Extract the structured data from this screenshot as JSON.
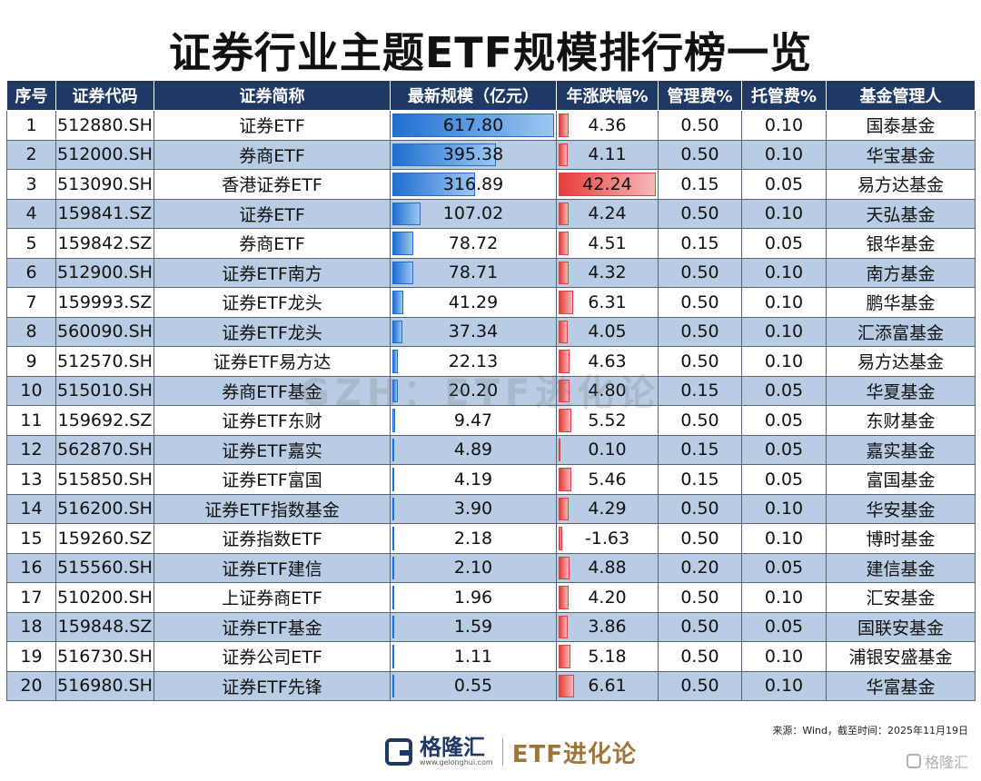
{
  "title": "证券行业主题ETF规模排行榜一览",
  "watermark": "GZH：ETF进化论",
  "headers": [
    "序号",
    "证券代码",
    "证券简称",
    "最新规模（亿元）",
    "年涨跌幅%",
    "管理费%",
    "托管费%",
    "基金管理人"
  ],
  "colors": {
    "header_bg": "#1f3864",
    "stripe": "#b8cce4",
    "bar_blue": "#1f6fd1",
    "bar_red": "#e83b3b"
  },
  "rows": [
    {
      "rank": "1",
      "code": "512880.SH",
      "name": "证券ETF",
      "scale": "617.80",
      "chg": "4.36",
      "mgmt": "0.50",
      "cust": "0.10",
      "manager": "国泰基金"
    },
    {
      "rank": "2",
      "code": "512000.SH",
      "name": "券商ETF",
      "scale": "395.38",
      "chg": "4.11",
      "mgmt": "0.50",
      "cust": "0.10",
      "manager": "华宝基金"
    },
    {
      "rank": "3",
      "code": "513090.SH",
      "name": "香港证券ETF",
      "scale": "316.89",
      "chg": "42.24",
      "mgmt": "0.15",
      "cust": "0.05",
      "manager": "易方达基金"
    },
    {
      "rank": "4",
      "code": "159841.SZ",
      "name": "证券ETF",
      "scale": "107.02",
      "chg": "4.24",
      "mgmt": "0.50",
      "cust": "0.10",
      "manager": "天弘基金"
    },
    {
      "rank": "5",
      "code": "159842.SZ",
      "name": "券商ETF",
      "scale": "78.72",
      "chg": "4.51",
      "mgmt": "0.15",
      "cust": "0.05",
      "manager": "银华基金"
    },
    {
      "rank": "6",
      "code": "512900.SH",
      "name": "证券ETF南方",
      "scale": "78.71",
      "chg": "4.32",
      "mgmt": "0.50",
      "cust": "0.10",
      "manager": "南方基金"
    },
    {
      "rank": "7",
      "code": "159993.SZ",
      "name": "证券ETF龙头",
      "scale": "41.29",
      "chg": "6.31",
      "mgmt": "0.50",
      "cust": "0.10",
      "manager": "鹏华基金"
    },
    {
      "rank": "8",
      "code": "560090.SH",
      "name": "证券ETF龙头",
      "scale": "37.34",
      "chg": "4.05",
      "mgmt": "0.50",
      "cust": "0.10",
      "manager": "汇添富基金"
    },
    {
      "rank": "9",
      "code": "512570.SH",
      "name": "证券ETF易方达",
      "scale": "22.13",
      "chg": "4.63",
      "mgmt": "0.50",
      "cust": "0.10",
      "manager": "易方达基金"
    },
    {
      "rank": "10",
      "code": "515010.SH",
      "name": "券商ETF基金",
      "scale": "20.20",
      "chg": "4.80",
      "mgmt": "0.15",
      "cust": "0.05",
      "manager": "华夏基金"
    },
    {
      "rank": "11",
      "code": "159692.SZ",
      "name": "证券ETF东财",
      "scale": "9.47",
      "chg": "5.52",
      "mgmt": "0.50",
      "cust": "0.05",
      "manager": "东财基金"
    },
    {
      "rank": "12",
      "code": "562870.SH",
      "name": "证券ETF嘉实",
      "scale": "4.89",
      "chg": "0.10",
      "mgmt": "0.15",
      "cust": "0.05",
      "manager": "嘉实基金"
    },
    {
      "rank": "13",
      "code": "515850.SH",
      "name": "证券ETF富国",
      "scale": "4.19",
      "chg": "5.46",
      "mgmt": "0.15",
      "cust": "0.05",
      "manager": "富国基金"
    },
    {
      "rank": "14",
      "code": "516200.SH",
      "name": "证券ETF指数基金",
      "scale": "3.90",
      "chg": "4.29",
      "mgmt": "0.50",
      "cust": "0.10",
      "manager": "华安基金"
    },
    {
      "rank": "15",
      "code": "159260.SZ",
      "name": "证券指数ETF",
      "scale": "2.18",
      "chg": "-1.63",
      "mgmt": "0.50",
      "cust": "0.10",
      "manager": "博时基金"
    },
    {
      "rank": "16",
      "code": "515560.SH",
      "name": "证券ETF建信",
      "scale": "2.10",
      "chg": "4.88",
      "mgmt": "0.20",
      "cust": "0.05",
      "manager": "建信基金"
    },
    {
      "rank": "17",
      "code": "510200.SH",
      "name": "上证券商ETF",
      "scale": "1.96",
      "chg": "4.20",
      "mgmt": "0.50",
      "cust": "0.10",
      "manager": "汇安基金"
    },
    {
      "rank": "18",
      "code": "159848.SZ",
      "name": "证券ETF基金",
      "scale": "1.59",
      "chg": "3.86",
      "mgmt": "0.50",
      "cust": "0.05",
      "manager": "国联安基金"
    },
    {
      "rank": "19",
      "code": "516730.SH",
      "name": "证券公司ETF",
      "scale": "1.11",
      "chg": "5.18",
      "mgmt": "0.50",
      "cust": "0.10",
      "manager": "浦银安盛基金"
    },
    {
      "rank": "20",
      "code": "516980.SH",
      "name": "证券ETF先锋",
      "scale": "0.55",
      "chg": "6.61",
      "mgmt": "0.50",
      "cust": "0.10",
      "manager": "华富基金"
    }
  ],
  "source": "来源：Wind，截至时间：2025年11月19日",
  "footer": {
    "brand": "格隆汇",
    "url": "www.gelonghui.com",
    "tag": "ETF进化论",
    "corner": "格隆汇"
  }
}
